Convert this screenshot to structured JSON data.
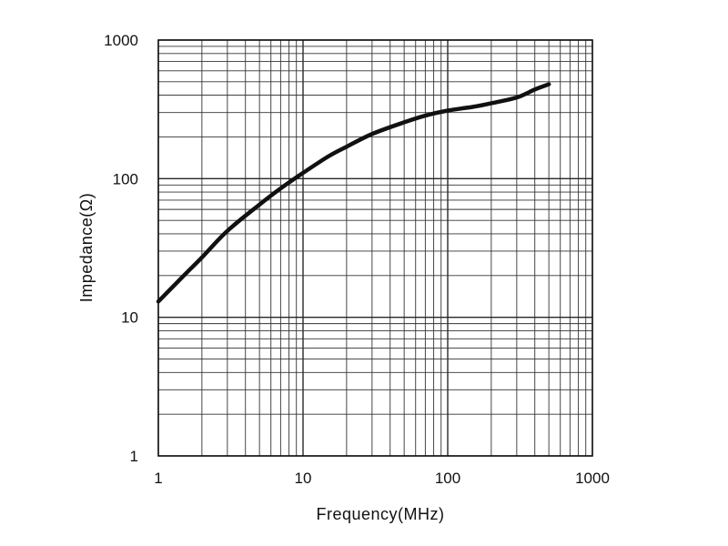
{
  "chart_data": {
    "type": "line",
    "xlabel": "Frequency(MHz)",
    "ylabel": "Impedance(Ω)",
    "x_scale": "log",
    "y_scale": "log",
    "xlim": [
      1,
      1000
    ],
    "ylim": [
      1,
      1000
    ],
    "grid": true,
    "x_ticks": [
      "1",
      "10",
      "100",
      "1000"
    ],
    "y_ticks": [
      "1",
      "10",
      "100",
      "1000"
    ],
    "series": [
      {
        "color": "#111111",
        "x": [
          1,
          1.5,
          2,
          3,
          5,
          7,
          10,
          15,
          20,
          30,
          50,
          70,
          100,
          150,
          200,
          300,
          400,
          500
        ],
        "y": [
          13,
          20,
          27,
          42,
          65,
          85,
          110,
          145,
          170,
          210,
          255,
          285,
          310,
          330,
          350,
          385,
          440,
          480
        ]
      }
    ]
  }
}
